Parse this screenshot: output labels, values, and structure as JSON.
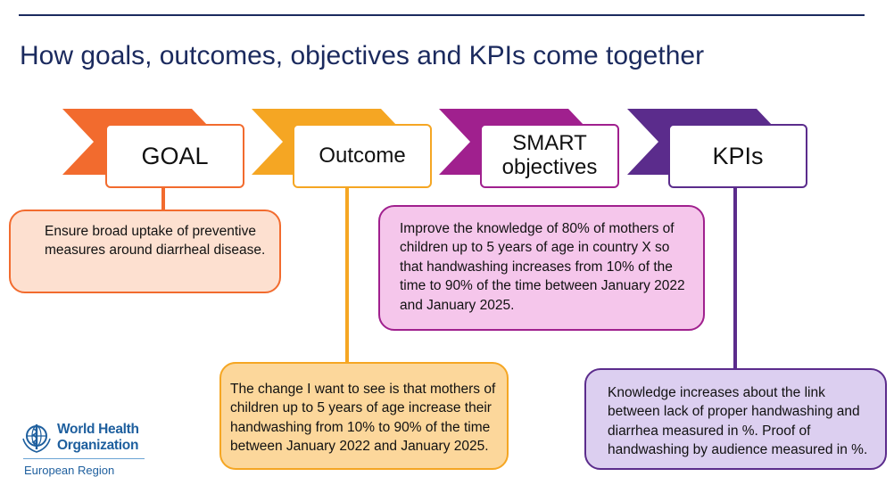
{
  "title": "How goals, outcomes, objectives and KPIs come together",
  "colors": {
    "title": "#1b2a5e",
    "goal": "#f26b2e",
    "outcome": "#f5a623",
    "objectives": "#a0208e",
    "kpis": "#5b2c8c"
  },
  "stages": [
    {
      "label": "GOAL"
    },
    {
      "label": "Outcome"
    },
    {
      "label_line1": "SMART",
      "label_line2": "objectives"
    },
    {
      "label": "KPIs"
    }
  ],
  "descriptions": {
    "goal": "Ensure broad uptake of preventive measures around diarrheal disease.",
    "outcome": "The change I want to see is that mothers of children up to 5 years of age increase their handwashing from 10% to 90% of the time between January 2022 and January 2025.",
    "objectives": "Improve the knowledge of 80% of mothers of children up to 5 years of age in country X so that handwashing increases from 10% of the time to 90% of the time between January 2022 and January 2025.",
    "kpis": "Knowledge increases about the link between lack of proper handwashing and diarrhea measured in %. Proof of handwashing by audience measured in %."
  },
  "logo": {
    "icon": "who-emblem-icon",
    "line1": "World Health",
    "line2": "Organization",
    "line3": "European Region"
  }
}
